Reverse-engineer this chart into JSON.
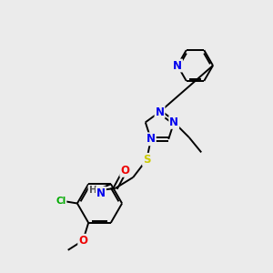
{
  "bg_color": "#ebebeb",
  "bond_color": "#000000",
  "atom_colors": {
    "N": "#0000ee",
    "S": "#cccc00",
    "O": "#ee0000",
    "Cl": "#00aa00",
    "H": "#555555",
    "C": "#000000"
  },
  "lw": 1.4,
  "fs": 7.5
}
